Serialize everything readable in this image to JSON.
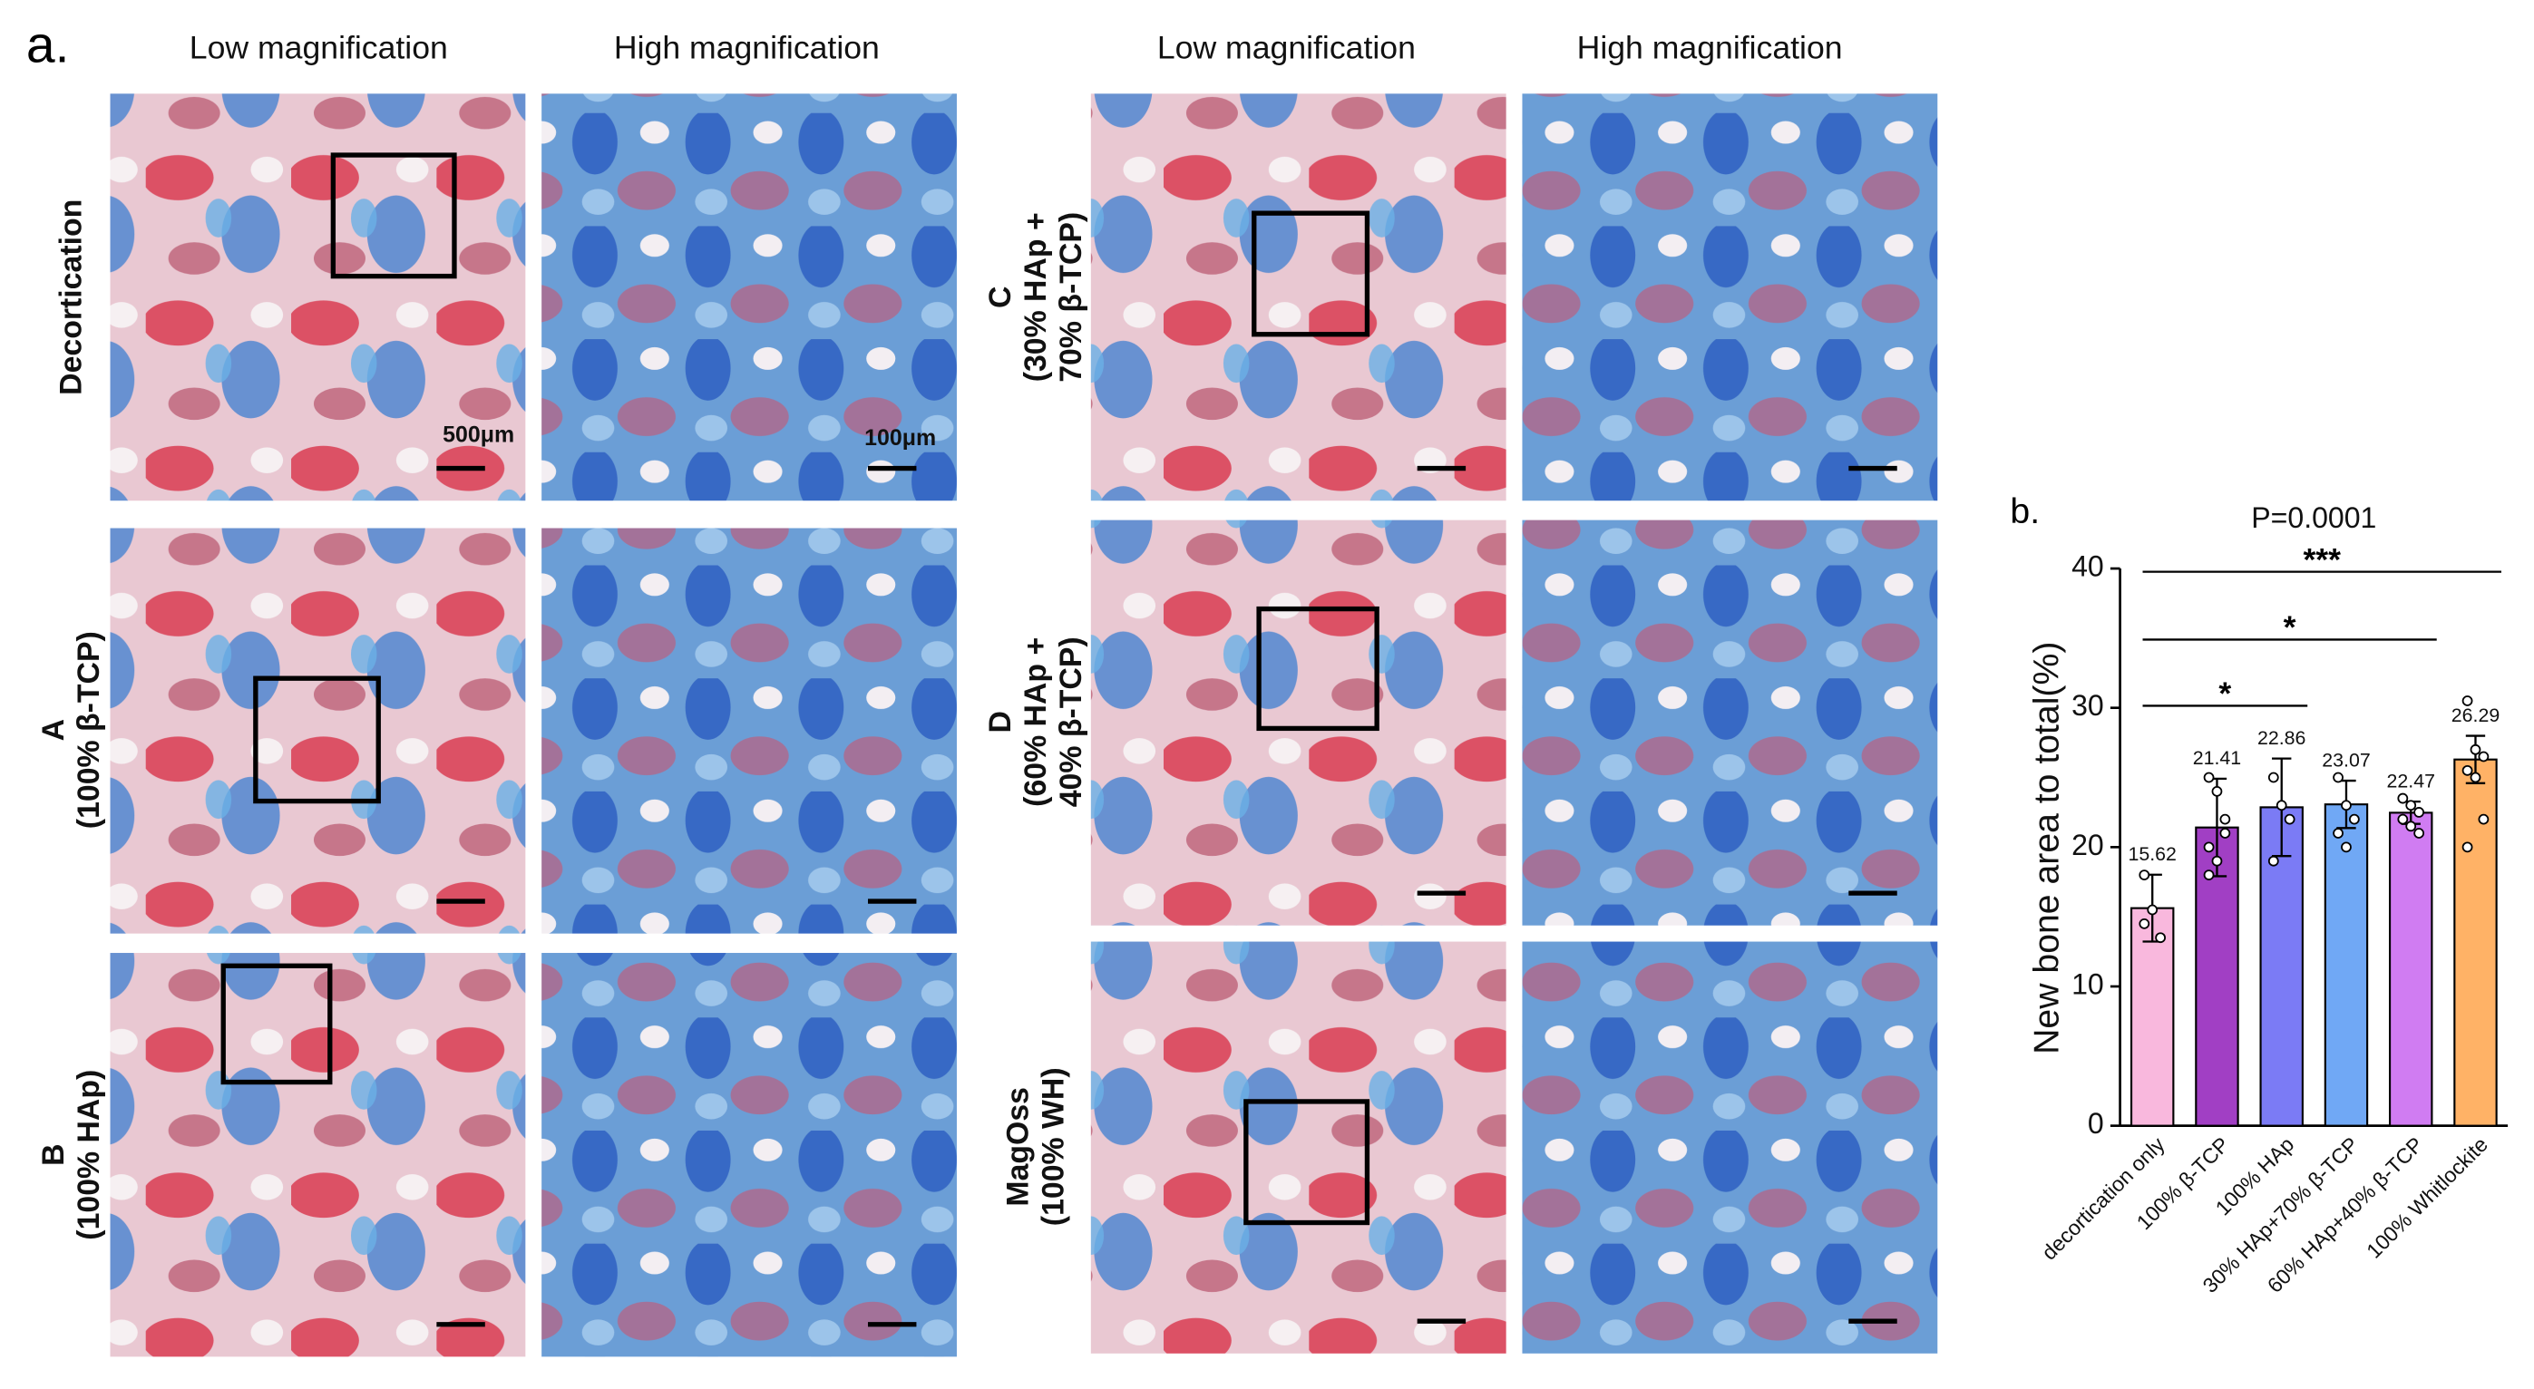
{
  "panel_a": {
    "label": "a.",
    "headers": [
      "Low magnification",
      "High magnification",
      "Low magnification",
      "High magnification"
    ],
    "rows": [
      {
        "lines": [
          "Decortication"
        ]
      },
      {
        "lines": [
          "A",
          "(100% β-TCP)"
        ]
      },
      {
        "lines": [
          "B",
          "(100% HAp)"
        ]
      },
      {
        "lines": [
          "C",
          "(30% HAp +",
          "70% β-TCP)"
        ]
      },
      {
        "lines": [
          "D",
          "(60% HAp +",
          "40% β-TCP)"
        ]
      },
      {
        "lines": [
          "MagOss",
          "(100% WH)"
        ]
      }
    ],
    "scale_bars": [
      "500μm",
      "100μm"
    ]
  },
  "chart_data": {
    "type": "bar",
    "label": "b.",
    "ylabel": "New bone area to total(%)",
    "categories": [
      "decortication only",
      "100% β-TCP",
      "100% HAp",
      "30% HAp+70% β-TCP",
      "60% HAp+40% β-TCP",
      "100% Whitlockite"
    ],
    "values": [
      15.62,
      21.41,
      22.86,
      23.07,
      22.47,
      26.29
    ],
    "errors": [
      2.4,
      3.5,
      3.5,
      1.7,
      0.8,
      1.7
    ],
    "points": [
      [
        18,
        15.5,
        13.5,
        14.5
      ],
      [
        25,
        24,
        22,
        20,
        19,
        21,
        18
      ],
      [
        25,
        23,
        22,
        19
      ],
      [
        25,
        23,
        22,
        21,
        20
      ],
      [
        23.5,
        23,
        22.5,
        22,
        21.5,
        21
      ],
      [
        30.5,
        27,
        26.5,
        25.5,
        25,
        22,
        20
      ]
    ],
    "colors": [
      "#f9b8dd",
      "#a13fc4",
      "#7b7bf5",
      "#70a8f5",
      "#d07cf2",
      "#ffb266"
    ],
    "ylim": [
      0,
      40
    ],
    "yticks": [
      0,
      10,
      20,
      30,
      40
    ],
    "annotations": [
      {
        "text": "P=0.0001"
      },
      {
        "text": "***",
        "from": 0,
        "to": 5
      },
      {
        "text": "*",
        "from": 0,
        "to": 4
      },
      {
        "text": "*",
        "from": 0,
        "to": 2
      }
    ]
  }
}
